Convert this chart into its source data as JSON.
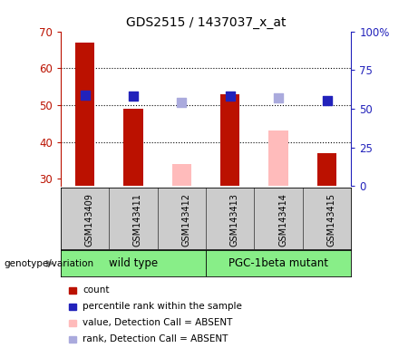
{
  "title": "GDS2515 / 1437037_x_at",
  "samples": [
    "GSM143409",
    "GSM143411",
    "GSM143412",
    "GSM143413",
    "GSM143414",
    "GSM143415"
  ],
  "bar_present_color": "#bb1100",
  "bar_absent_color": "#ffbbbb",
  "dot_present_color": "#2222bb",
  "dot_absent_color": "#aaaadd",
  "count_values": [
    67,
    49,
    null,
    53,
    null,
    37
  ],
  "count_absent_values": [
    null,
    null,
    34,
    null,
    43,
    null
  ],
  "rank_present_values": [
    59,
    58,
    null,
    58,
    null,
    55
  ],
  "rank_absent_values": [
    null,
    null,
    54,
    null,
    57,
    null
  ],
  "ylim_left": [
    28,
    70
  ],
  "ylim_right": [
    0,
    100
  ],
  "yticks_left": [
    30,
    40,
    50,
    60,
    70
  ],
  "yticks_right": [
    0,
    25,
    50,
    75,
    100
  ],
  "ylabel_left_color": "#bb1100",
  "ylabel_right_color": "#2222bb",
  "plot_bg_color": "#ffffff",
  "label_area_color": "#cccccc",
  "group_area_color": "#88ee88",
  "bar_width": 0.4,
  "dot_size": 45,
  "legend_items": [
    {
      "label": "count",
      "color": "#bb1100"
    },
    {
      "label": "percentile rank within the sample",
      "color": "#2222bb"
    },
    {
      "label": "value, Detection Call = ABSENT",
      "color": "#ffbbbb"
    },
    {
      "label": "rank, Detection Call = ABSENT",
      "color": "#aaaadd"
    }
  ],
  "group_labels": [
    "wild type",
    "PGC-1beta mutant"
  ],
  "group_ranges": [
    [
      0,
      2
    ],
    [
      3,
      5
    ]
  ],
  "genotype_label": "genotype/variation"
}
